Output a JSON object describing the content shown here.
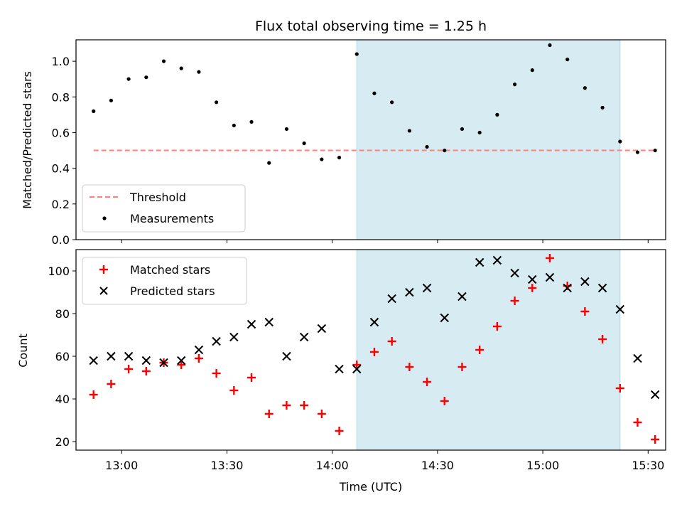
{
  "chart_data": [
    {
      "type": "scatter",
      "title": "Flux total observing time = 1.25 h",
      "ylabel": "Matched/Predicted stars",
      "xlabel": "",
      "ylim": [
        0,
        1.12
      ],
      "yticks": [
        "0.0",
        "0.2",
        "0.4",
        "0.6",
        "0.8",
        "1.0"
      ],
      "ytick_values": [
        0,
        0.2,
        0.4,
        0.6,
        0.8,
        1.0
      ],
      "xlim": [
        "12:47",
        "15:35"
      ],
      "shaded_span": [
        "14:07",
        "15:22"
      ],
      "shade_color": "#add8e6",
      "threshold": {
        "name": "Threshold",
        "value": 0.5,
        "x_range": [
          "12:52",
          "15:32"
        ],
        "color": "#ff7f7f"
      },
      "series": [
        {
          "name": "Measurements",
          "color": "#000000",
          "marker": "dot",
          "x": [
            "12:52",
            "12:57",
            "13:02",
            "13:07",
            "13:12",
            "13:17",
            "13:22",
            "13:27",
            "13:32",
            "13:37",
            "13:42",
            "13:47",
            "13:52",
            "13:57",
            "14:02",
            "14:07",
            "14:12",
            "14:17",
            "14:22",
            "14:27",
            "14:32",
            "14:37",
            "14:42",
            "14:47",
            "14:52",
            "14:57",
            "15:02",
            "15:07",
            "15:12",
            "15:17",
            "15:22",
            "15:27",
            "15:32"
          ],
          "y": [
            0.72,
            0.78,
            0.9,
            0.91,
            1.0,
            0.96,
            0.94,
            0.77,
            0.64,
            0.66,
            0.43,
            0.62,
            0.54,
            0.45,
            0.46,
            1.04,
            0.82,
            0.77,
            0.61,
            0.52,
            0.5,
            0.62,
            0.6,
            0.7,
            0.87,
            0.95,
            1.09,
            1.01,
            0.85,
            0.74,
            0.55,
            0.49,
            0.5
          ]
        }
      ],
      "legend": {
        "placement": "lower-left",
        "entries": [
          "Threshold",
          "Measurements"
        ]
      }
    },
    {
      "type": "scatter",
      "title": "",
      "ylabel": "Count",
      "xlabel": "Time (UTC)",
      "ylim": [
        16,
        110
      ],
      "yticks": [
        "20",
        "40",
        "60",
        "80",
        "100"
      ],
      "ytick_values": [
        20,
        40,
        60,
        80,
        100
      ],
      "xlim": [
        "12:47",
        "15:35"
      ],
      "xticks": [
        "13:00",
        "13:30",
        "14:00",
        "14:30",
        "15:00",
        "15:30"
      ],
      "shaded_span": [
        "14:07",
        "15:22"
      ],
      "shade_color": "#add8e6",
      "series": [
        {
          "name": "Matched stars",
          "color": "#ff0000",
          "marker": "plus",
          "x": [
            "12:52",
            "12:57",
            "13:02",
            "13:07",
            "13:12",
            "13:17",
            "13:22",
            "13:27",
            "13:32",
            "13:37",
            "13:42",
            "13:47",
            "13:52",
            "13:57",
            "14:02",
            "14:07",
            "14:12",
            "14:17",
            "14:22",
            "14:27",
            "14:32",
            "14:37",
            "14:42",
            "14:47",
            "14:52",
            "14:57",
            "15:02",
            "15:07",
            "15:12",
            "15:17",
            "15:22",
            "15:27",
            "15:32"
          ],
          "y": [
            42,
            47,
            54,
            53,
            57,
            56,
            59,
            52,
            44,
            50,
            33,
            37,
            37,
            33,
            25,
            56,
            62,
            67,
            55,
            48,
            39,
            55,
            63,
            74,
            86,
            92,
            106,
            93,
            81,
            68,
            45,
            29,
            21
          ]
        },
        {
          "name": "Predicted stars",
          "color": "#000000",
          "marker": "x",
          "x": [
            "12:52",
            "12:57",
            "13:02",
            "13:07",
            "13:12",
            "13:17",
            "13:22",
            "13:27",
            "13:32",
            "13:37",
            "13:42",
            "13:47",
            "13:52",
            "13:57",
            "14:02",
            "14:07",
            "14:12",
            "14:17",
            "14:22",
            "14:27",
            "14:32",
            "14:37",
            "14:42",
            "14:47",
            "14:52",
            "14:57",
            "15:02",
            "15:07",
            "15:12",
            "15:17",
            "15:22",
            "15:27",
            "15:32"
          ],
          "y": [
            58,
            60,
            60,
            58,
            57,
            58,
            63,
            67,
            69,
            75,
            76,
            60,
            69,
            73,
            54,
            54,
            76,
            87,
            90,
            92,
            78,
            88,
            104,
            105,
            99,
            96,
            97,
            92,
            95,
            92,
            82,
            59,
            42
          ]
        }
      ],
      "legend": {
        "placement": "upper-left",
        "entries": [
          "Matched stars",
          "Predicted stars"
        ]
      }
    }
  ]
}
